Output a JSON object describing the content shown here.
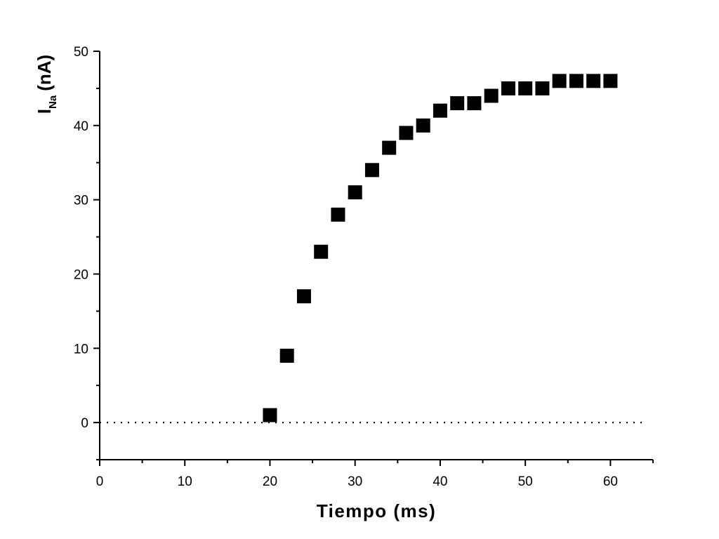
{
  "chart_data": {
    "type": "scatter",
    "title": "",
    "xlabel": "Tiempo (ms)",
    "ylabel": {
      "main": "I",
      "sub": "Na",
      "unit": "(nA)"
    },
    "xlim": [
      0,
      65
    ],
    "ylim": [
      -5,
      50
    ],
    "xticks": [
      0,
      10,
      20,
      30,
      40,
      50,
      60
    ],
    "yticks": [
      0,
      10,
      20,
      30,
      40,
      50
    ],
    "x_minor_ticks": [
      5,
      15,
      25,
      35,
      45,
      55,
      65
    ],
    "y_minor_ticks": [
      -5,
      5,
      15,
      25,
      35,
      45
    ],
    "reference_line": {
      "y": 0,
      "style": "dotted",
      "x_range": [
        0,
        64
      ]
    },
    "marker": {
      "shape": "square",
      "color": "#000000"
    },
    "grid": false,
    "legend": "none",
    "series": [
      {
        "x": [
          20,
          22,
          24,
          26,
          28,
          30,
          32,
          34,
          36,
          38,
          40,
          42,
          44,
          46,
          48,
          50,
          52,
          54,
          56,
          58,
          60
        ],
        "y": [
          1,
          9,
          17,
          23,
          28,
          31,
          34,
          37,
          39,
          40,
          42,
          43,
          43,
          44,
          45,
          45,
          45,
          46,
          46,
          46,
          46
        ]
      }
    ]
  }
}
